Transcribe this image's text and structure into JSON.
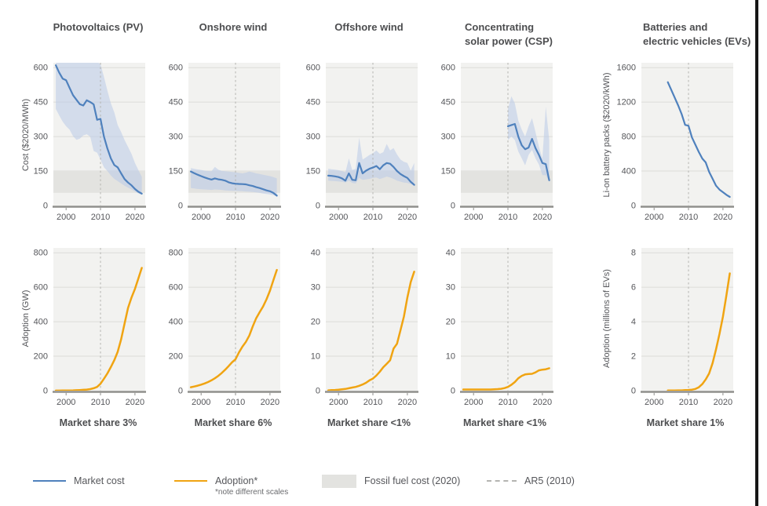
{
  "figure": {
    "columns": [
      {
        "title_lines": [
          "Photovoltaics (PV)"
        ],
        "market_share": "Market share 3%"
      },
      {
        "title_lines": [
          "Onshore wind"
        ],
        "market_share": "Market share 6%"
      },
      {
        "title_lines": [
          "Offshore wind"
        ],
        "market_share": "Market share <1%"
      },
      {
        "title_lines": [
          "Concentrating",
          "solar power (CSP)"
        ],
        "market_share": "Market share <1%"
      },
      {
        "title_lines": [
          "Batteries and",
          "electric vehicles (EVs)"
        ],
        "market_share": "Market share 1%"
      }
    ],
    "axis_labels": {
      "cost": "Cost ($2020/MWh)",
      "battery_cost": "Li-on battery packs ($2020/kWh)",
      "adoption": "Adoption (GW)",
      "ev_adoption": "Adoption (millions of EVs)"
    },
    "legend": [
      {
        "label": "Market cost",
        "swatch": "line-blue"
      },
      {
        "label": "Adoption*",
        "note": "*note different scales",
        "swatch": "line-orange"
      },
      {
        "label": "Fossil fuel cost (2020)",
        "swatch": "box-gray"
      },
      {
        "label": "AR5 (2010)",
        "swatch": "dash-gray"
      }
    ],
    "x_tick_labels": [
      "2000",
      "2010",
      "2020"
    ]
  },
  "colors": {
    "cost_line": "#4f81bd",
    "cost_band": "#b9cbe8",
    "adoption_line": "#f0a412",
    "fossil_band": "#e3e3e0",
    "plot_bg": "#f2f2f0",
    "grid": "#dcdcd9",
    "axis": "#8f8f8c",
    "dashed": "#b4b4b1",
    "text": "#55565a"
  },
  "chart_data": [
    {
      "id": "pv-cost",
      "type": "line",
      "row": "cost",
      "col": 0,
      "title": "Photovoltaics (PV)",
      "ylabel": "Cost ($2020/MWh)",
      "x_start": 1997,
      "xrange": [
        1996.3,
        2023
      ],
      "xticks": [
        2000,
        2010,
        2020
      ],
      "yticks": [
        0,
        150,
        300,
        450,
        600
      ],
      "y": [
        610,
        578,
        552,
        545,
        512,
        480,
        460,
        441,
        435,
        458,
        450,
        440,
        373,
        377,
        300,
        248,
        205,
        176,
        166,
        140,
        115,
        100,
        88,
        72,
        60,
        52
      ],
      "band_upper": [
        625,
        625,
        625,
        625,
        625,
        625,
        625,
        625,
        625,
        625,
        625,
        625,
        625,
        615,
        560,
        500,
        445,
        405,
        350,
        320,
        285,
        255,
        225,
        185,
        155,
        125
      ],
      "band_lower": [
        420,
        392,
        365,
        345,
        330,
        302,
        286,
        291,
        305,
        310,
        300,
        237,
        230,
        200,
        166,
        150,
        131,
        116,
        106,
        96,
        86,
        78,
        70,
        61,
        53,
        46
      ],
      "fossil_band": [
        55,
        150
      ],
      "ar5_x": 2010
    },
    {
      "id": "onshore-cost",
      "type": "line",
      "row": "cost",
      "col": 1,
      "title": "Onshore wind",
      "ylabel": "Cost ($2020/MWh)",
      "x_start": 1997,
      "xrange": [
        1996.3,
        2023
      ],
      "xticks": [
        2000,
        2010,
        2020
      ],
      "yticks": [
        0,
        150,
        300,
        450,
        600
      ],
      "y": [
        148,
        141,
        134,
        128,
        122,
        117,
        113,
        118,
        114,
        112,
        108,
        101,
        97,
        95,
        94,
        93,
        92,
        88,
        85,
        80,
        76,
        71,
        66,
        62,
        55,
        43
      ],
      "band_upper": [
        163,
        160,
        157,
        155,
        152,
        150,
        149,
        168,
        156,
        151,
        149,
        148,
        146,
        145,
        142,
        140,
        143,
        148,
        144,
        140,
        137,
        134,
        131,
        128,
        124,
        118
      ],
      "band_lower": [
        76,
        74,
        72,
        71,
        70,
        69,
        68,
        70,
        69,
        68,
        66,
        65,
        64,
        64,
        63,
        62,
        61,
        60,
        59,
        57,
        55,
        52,
        50,
        48,
        45,
        40
      ],
      "fossil_band": [
        55,
        150
      ],
      "ar5_x": 2010
    },
    {
      "id": "offshore-cost",
      "type": "line",
      "row": "cost",
      "col": 2,
      "title": "Offshore wind",
      "ylabel": "Cost ($2020/MWh)",
      "x_start": 1997,
      "xrange": [
        1996.3,
        2023
      ],
      "xticks": [
        2000,
        2010,
        2020
      ],
      "yticks": [
        0,
        150,
        300,
        450,
        600
      ],
      "y": [
        130,
        129,
        127,
        124,
        118,
        108,
        140,
        112,
        110,
        185,
        140,
        152,
        160,
        165,
        172,
        158,
        175,
        185,
        182,
        168,
        150,
        137,
        128,
        120,
        103,
        90
      ],
      "band_upper": [
        160,
        158,
        156,
        154,
        150,
        145,
        205,
        155,
        160,
        295,
        200,
        210,
        220,
        228,
        240,
        225,
        232,
        268,
        240,
        250,
        222,
        200,
        190,
        185,
        152,
        185
      ],
      "band_lower": [
        108,
        107,
        106,
        105,
        103,
        100,
        108,
        98,
        96,
        120,
        112,
        114,
        116,
        120,
        122,
        115,
        120,
        126,
        122,
        116,
        108,
        104,
        100,
        98,
        94,
        85
      ],
      "fossil_band": [
        55,
        150
      ],
      "ar5_x": 2010
    },
    {
      "id": "csp-cost",
      "type": "line",
      "row": "cost",
      "col": 3,
      "title": "Concentrating solar power (CSP)",
      "ylabel": "Cost ($2020/MWh)",
      "x_start": 2010,
      "xrange": [
        1996.3,
        2023
      ],
      "xticks": [
        2000,
        2010,
        2020
      ],
      "yticks": [
        0,
        150,
        300,
        450,
        600
      ],
      "y": [
        345,
        350,
        355,
        300,
        262,
        245,
        252,
        290,
        250,
        220,
        185,
        180,
        110
      ],
      "band_upper": [
        420,
        475,
        445,
        370,
        330,
        300,
        345,
        380,
        320,
        255,
        205,
        430,
        285
      ],
      "band_lower": [
        285,
        300,
        285,
        235,
        205,
        175,
        220,
        242,
        205,
        178,
        132,
        132,
        104
      ],
      "fossil_band": [
        55,
        150
      ],
      "ar5_x": 2010
    },
    {
      "id": "battery-cost",
      "type": "line",
      "row": "cost",
      "col": 4,
      "title": "Batteries and electric vehicles (EVs)",
      "ylabel": "Li-on battery packs ($2020/kWh)",
      "x_start": 2004,
      "xrange": [
        1996.3,
        2023
      ],
      "xticks": [
        2000,
        2010,
        2020
      ],
      "yticks": [
        0,
        400,
        800,
        1200,
        1600
      ],
      "y": [
        1430,
        1340,
        1250,
        1160,
        1060,
        935,
        925,
        790,
        705,
        620,
        545,
        500,
        390,
        310,
        230,
        185,
        155,
        125,
        100
      ],
      "band_upper": null,
      "band_lower": null,
      "fossil_band": null,
      "ar5_x": 2010
    },
    {
      "id": "pv-adoption",
      "type": "line",
      "row": "adoption",
      "col": 0,
      "title": "Photovoltaics (PV)",
      "ylabel": "Adoption (GW)",
      "x_start": 1997,
      "xrange": [
        1996.3,
        2023
      ],
      "xticks": [
        2000,
        2010,
        2020
      ],
      "yticks": [
        0,
        200,
        400,
        600,
        800
      ],
      "y": [
        0.4,
        0.5,
        0.7,
        1.0,
        1.4,
        1.9,
        2.6,
        3.5,
        4.8,
        6.5,
        9,
        14,
        22,
        40,
        69,
        100,
        137,
        177,
        225,
        298,
        390,
        480,
        540,
        590,
        650,
        712
      ],
      "band_upper": null,
      "band_lower": null,
      "fossil_band": null,
      "ar5_x": 2010
    },
    {
      "id": "onshore-adoption",
      "type": "line",
      "row": "adoption",
      "col": 1,
      "title": "Onshore wind",
      "ylabel": "Adoption (GW)",
      "x_start": 1997,
      "xrange": [
        1996.3,
        2023
      ],
      "xticks": [
        2000,
        2010,
        2020
      ],
      "yticks": [
        0,
        200,
        400,
        600,
        800
      ],
      "y": [
        20,
        24,
        29,
        35,
        42,
        50,
        60,
        72,
        86,
        103,
        122,
        143,
        165,
        182,
        222,
        255,
        283,
        320,
        372,
        420,
        455,
        488,
        530,
        580,
        640,
        700
      ],
      "band_upper": null,
      "band_lower": null,
      "fossil_band": null,
      "ar5_x": 2010
    },
    {
      "id": "offshore-adoption",
      "type": "line",
      "row": "adoption",
      "col": 2,
      "title": "Offshore wind",
      "ylabel": "Adoption (GW)",
      "x_start": 1997,
      "xrange": [
        1996.3,
        2023
      ],
      "xticks": [
        2000,
        2010,
        2020
      ],
      "yticks": [
        0,
        10,
        20,
        30,
        40
      ],
      "y": [
        0.1,
        0.15,
        0.2,
        0.3,
        0.4,
        0.5,
        0.7,
        0.9,
        1.1,
        1.4,
        1.8,
        2.3,
        3.0,
        3.5,
        4.4,
        5.5,
        6.8,
        7.8,
        8.8,
        12.2,
        13.6,
        17.5,
        21.5,
        27,
        31.5,
        34.5
      ],
      "band_upper": null,
      "band_lower": null,
      "fossil_band": null,
      "ar5_x": 2010
    },
    {
      "id": "csp-adoption",
      "type": "line",
      "row": "adoption",
      "col": 3,
      "title": "Concentrating solar power (CSP)",
      "ylabel": "Adoption (GW)",
      "x_start": 1997,
      "xrange": [
        1996.3,
        2023
      ],
      "xticks": [
        2000,
        2010,
        2020
      ],
      "yticks": [
        0,
        10,
        20,
        30,
        40
      ],
      "y": [
        0.35,
        0.35,
        0.35,
        0.35,
        0.35,
        0.35,
        0.35,
        0.35,
        0.35,
        0.4,
        0.45,
        0.55,
        0.75,
        1.1,
        1.7,
        2.5,
        3.6,
        4.3,
        4.7,
        4.85,
        4.9,
        5.3,
        5.9,
        6.1,
        6.2,
        6.5
      ],
      "band_upper": null,
      "band_lower": null,
      "fossil_band": null,
      "ar5_x": 2010
    },
    {
      "id": "ev-adoption",
      "type": "line",
      "row": "adoption",
      "col": 4,
      "title": "Batteries and electric vehicles (EVs)",
      "ylabel": "Adoption (millions of EVs)",
      "x_start": 2004,
      "xrange": [
        1996.3,
        2023
      ],
      "xticks": [
        2000,
        2010,
        2020
      ],
      "yticks": [
        0,
        2,
        4,
        6,
        8
      ],
      "y": [
        0.01,
        0.01,
        0.01,
        0.02,
        0.02,
        0.03,
        0.04,
        0.06,
        0.1,
        0.2,
        0.38,
        0.65,
        1.0,
        1.6,
        2.4,
        3.3,
        4.3,
        5.5,
        6.8
      ],
      "band_upper": null,
      "band_lower": null,
      "fossil_band": null,
      "ar5_x": 2010
    }
  ]
}
